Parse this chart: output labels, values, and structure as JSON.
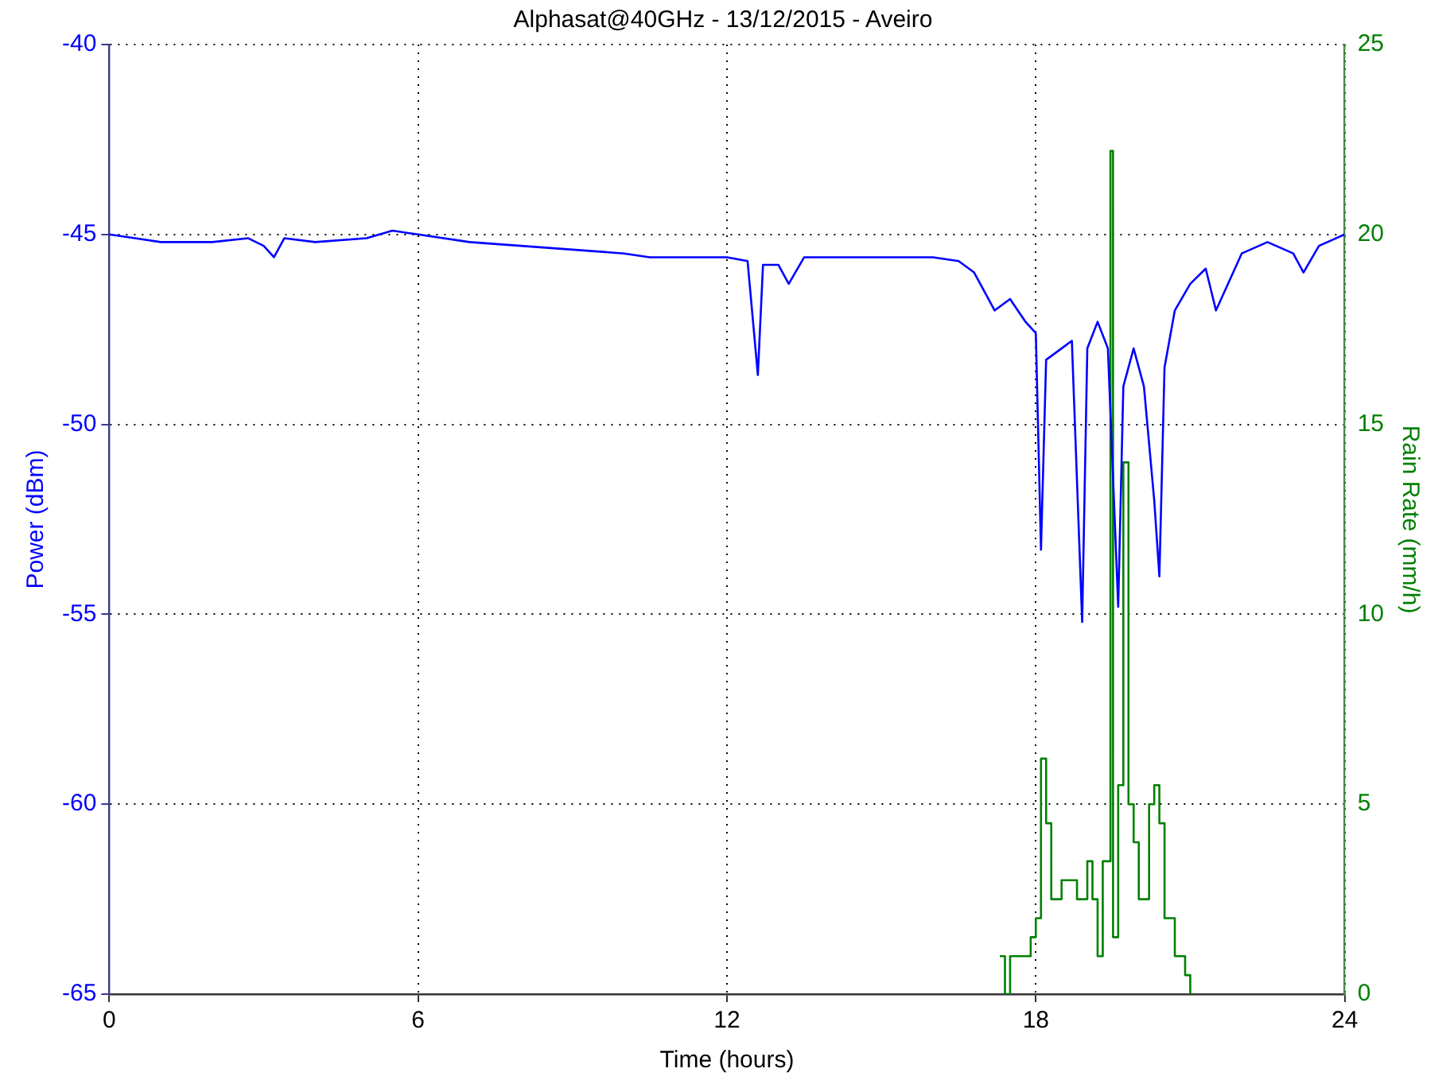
{
  "chart_data": {
    "type": "line",
    "title": "Alphasat@40GHz - 13/12/2015 - Aveiro",
    "xlabel": "Time (hours)",
    "ylabel": "Power (dBm)",
    "y2label": "Rain Rate (mm/h)",
    "xlim": [
      0,
      24
    ],
    "xticks": [
      0,
      6,
      12,
      18,
      24
    ],
    "ylim": [
      -65,
      -40
    ],
    "yticks": [
      -65,
      -60,
      -55,
      -50,
      -45,
      -40
    ],
    "y2lim": [
      0,
      25
    ],
    "y2ticks": [
      0,
      5,
      10,
      15,
      20,
      25
    ],
    "grid": true,
    "series": [
      {
        "type": "line",
        "color": "#0000ff",
        "x": [
          0,
          0.5,
          1,
          2,
          2.7,
          3,
          3.2,
          3.4,
          4,
          5,
          5.5,
          6,
          7,
          8,
          9,
          10,
          10.5,
          11,
          12,
          12.4,
          12.6,
          12.7,
          13,
          13.2,
          13.5,
          14,
          15,
          16,
          16.5,
          16.8,
          17,
          17.2,
          17.5,
          17.8,
          18,
          18.1,
          18.2,
          18.5,
          18.7,
          18.9,
          19,
          19.2,
          19.4,
          19.6,
          19.7,
          19.9,
          20.1,
          20.3,
          20.4,
          20.5,
          20.7,
          21,
          21.3,
          21.5,
          22,
          22.5,
          23,
          23.2,
          23.5,
          24
        ],
        "values": [
          -45,
          -45.1,
          -45.2,
          -45.2,
          -45.1,
          -45.3,
          -45.6,
          -45.1,
          -45.2,
          -45.1,
          -44.9,
          -45,
          -45.2,
          -45.3,
          -45.4,
          -45.5,
          -45.6,
          -45.6,
          -45.6,
          -45.7,
          -48.7,
          -45.8,
          -45.8,
          -46.3,
          -45.6,
          -45.6,
          -45.6,
          -45.6,
          -45.7,
          -46,
          -46.5,
          -47,
          -46.7,
          -47.3,
          -47.6,
          -53.3,
          -48.3,
          -48,
          -47.8,
          -55.2,
          -48,
          -47.3,
          -48,
          -54.8,
          -49,
          -48,
          -49,
          -52,
          -54,
          -48.5,
          -47,
          -46.3,
          -45.9,
          -47,
          -45.5,
          -45.2,
          -45.5,
          -46,
          -45.3,
          -45
        ]
      },
      {
        "type": "step",
        "axis": "y2",
        "color": "#008000",
        "x": [
          17.3,
          17.4,
          17.5,
          17.6,
          17.9,
          18,
          18.1,
          18.2,
          18.3,
          18.5,
          18.8,
          19,
          19.1,
          19.2,
          19.3,
          19.45,
          19.5,
          19.6,
          19.7,
          19.8,
          19.9,
          20,
          20.2,
          20.3,
          20.4,
          20.5,
          20.7,
          20.9,
          21
        ],
        "values": [
          1,
          0,
          1,
          1,
          1.5,
          2,
          6.2,
          4.5,
          2.5,
          3,
          2.5,
          3.5,
          2.5,
          1,
          3.5,
          22.2,
          1.5,
          5.5,
          14,
          5,
          4,
          2.5,
          5,
          5.5,
          4.5,
          2,
          1,
          0.5,
          0
        ]
      }
    ]
  }
}
